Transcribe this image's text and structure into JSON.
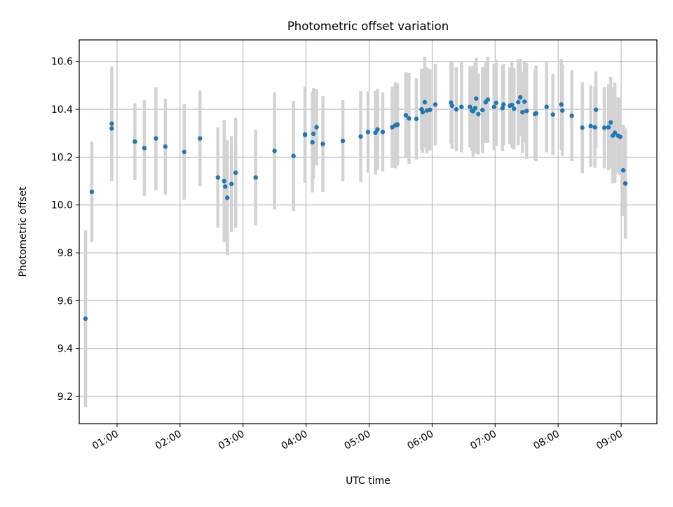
{
  "colors": {
    "point": "#1f77b4",
    "errorbar": "#d3d3d3",
    "grid": "#b0b0b0",
    "axes": "#000000",
    "background": "#ffffff"
  },
  "chart_data": {
    "type": "scatter",
    "title": "Photometric offset variation",
    "xlabel": "UTC time",
    "ylabel": "Photometric offset",
    "grid": true,
    "xlim": [
      "00:24",
      "09:34"
    ],
    "ylim": [
      9.086,
      10.69
    ],
    "x_ticks": [
      "01:00",
      "02:00",
      "03:00",
      "04:00",
      "05:00",
      "06:00",
      "07:00",
      "08:00",
      "09:00"
    ],
    "y_ticks": [
      9.2,
      9.4,
      9.6,
      9.8,
      10.0,
      10.2,
      10.4,
      10.6
    ],
    "y_tick_labels": [
      "9.2",
      "9.4",
      "9.6",
      "9.8",
      "10.0",
      "10.2",
      "10.4",
      "10.6"
    ],
    "series": [
      {
        "errorbar": true,
        "x": [
          "00:30",
          "00:36",
          "00:55",
          "00:55",
          "01:17",
          "01:26",
          "01:37",
          "01:46",
          "02:04",
          "02:19",
          "02:36",
          "02:42",
          "02:43",
          "02:45",
          "02:49",
          "02:53",
          "03:12",
          "03:30",
          "03:48",
          "03:59",
          "03:59",
          "04:06",
          "04:07",
          "04:10",
          "04:16",
          "04:35",
          "04:52",
          "04:59",
          "05:06",
          "05:08",
          "05:13",
          "05:22",
          "05:25",
          "05:27",
          "05:27",
          "05:35",
          "05:38",
          "05:45",
          "05:50",
          "05:51",
          "05:53",
          "05:55",
          "05:58",
          "06:03",
          "06:18",
          "06:19",
          "06:23",
          "06:28",
          "06:36",
          "06:38",
          "06:39",
          "06:41",
          "06:42",
          "06:44",
          "06:48",
          "06:51",
          "06:53",
          "06:59",
          "07:01",
          "07:07",
          "07:08",
          "07:14",
          "07:16",
          "07:18",
          "07:22",
          "07:24",
          "07:26",
          "07:28",
          "07:30",
          "07:38",
          "07:39",
          "07:49",
          "07:55",
          "08:03",
          "08:04",
          "08:13",
          "08:23",
          "08:31",
          "08:35",
          "08:36",
          "08:44",
          "08:48",
          "08:50",
          "08:52",
          "08:54",
          "08:57",
          "08:59",
          "09:02",
          "09:04"
        ],
        "y": [
          9.525,
          10.055,
          10.34,
          10.32,
          10.265,
          10.238,
          10.278,
          10.244,
          10.222,
          10.278,
          10.115,
          10.1,
          10.077,
          10.03,
          10.088,
          10.135,
          10.115,
          10.226,
          10.205,
          10.293,
          10.295,
          10.262,
          10.298,
          10.325,
          10.255,
          10.268,
          10.286,
          10.305,
          10.302,
          10.316,
          10.305,
          10.325,
          10.333,
          10.335,
          10.337,
          10.375,
          10.362,
          10.36,
          10.4,
          10.388,
          10.43,
          10.395,
          10.398,
          10.42,
          10.428,
          10.415,
          10.4,
          10.41,
          10.41,
          10.395,
          10.392,
          10.405,
          10.445,
          10.38,
          10.397,
          10.43,
          10.44,
          10.41,
          10.427,
          10.405,
          10.42,
          10.415,
          10.418,
          10.402,
          10.43,
          10.45,
          10.388,
          10.432,
          10.393,
          10.38,
          10.383,
          10.41,
          10.378,
          10.42,
          10.395,
          10.373,
          10.323,
          10.33,
          10.325,
          10.398,
          10.323,
          10.325,
          10.345,
          10.29,
          10.302,
          10.29,
          10.285,
          10.145,
          10.09
        ],
        "yerr": [
          0.37,
          0.21,
          0.24,
          0.22,
          0.16,
          0.2,
          0.215,
          0.2,
          0.2,
          0.2,
          0.21,
          0.255,
          0.2,
          0.24,
          0.2,
          0.23,
          0.2,
          0.245,
          0.23,
          0.2,
          0.2,
          0.21,
          0.19,
          0.16,
          0.2,
          0.17,
          0.19,
          0.17,
          0.175,
          0.17,
          0.165,
          0.17,
          0.18,
          0.17,
          0.17,
          0.18,
          0.19,
          0.17,
          0.17,
          0.17,
          0.19,
          0.18,
          0.17,
          0.17,
          0.17,
          0.18,
          0.175,
          0.19,
          0.17,
          0.17,
          0.19,
          0.19,
          0.17,
          0.17,
          0.18,
          0.17,
          0.18,
          0.18,
          0.18,
          0.18,
          0.17,
          0.16,
          0.18,
          0.17,
          0.18,
          0.16,
          0.17,
          0.17,
          0.2,
          0.19,
          0.2,
          0.19,
          0.17,
          0.19,
          0.19,
          0.19,
          0.19,
          0.17,
          0.17,
          0.16,
          0.17,
          0.18,
          0.19,
          0.2,
          0.21,
          0.16,
          0.16,
          0.19,
          0.23
        ]
      }
    ]
  }
}
